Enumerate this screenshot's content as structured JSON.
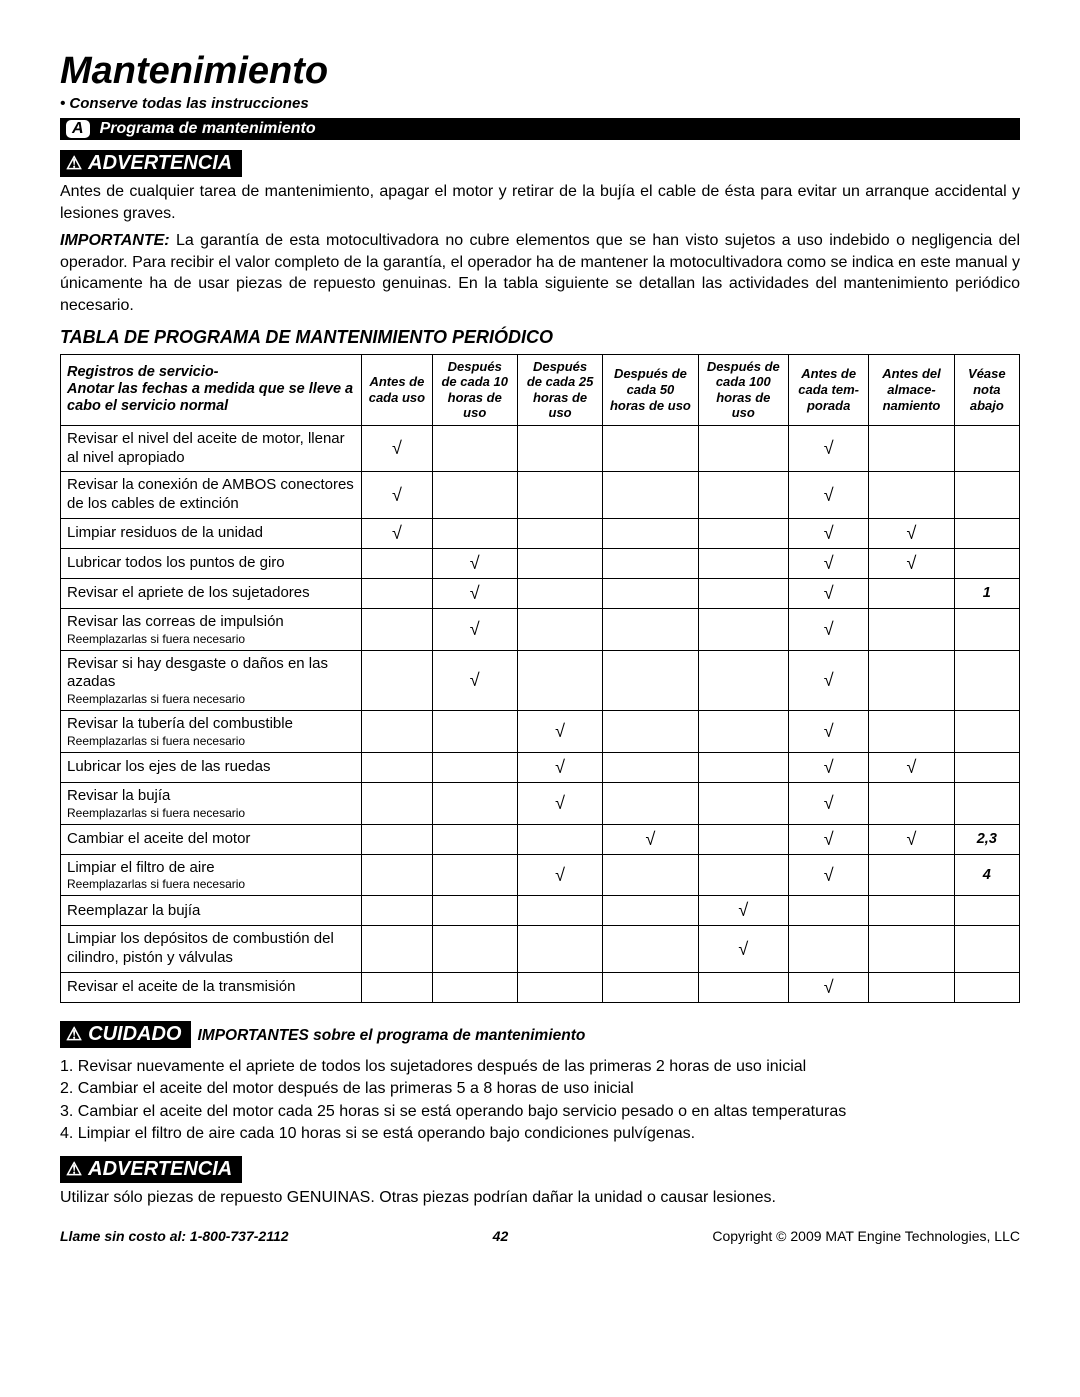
{
  "page": {
    "title": "Mantenimiento",
    "subtitle": "• Conserve todas las instrucciones",
    "section_letter": "A",
    "section_label": "Programa de mantenimiento"
  },
  "warning1": {
    "label": "ADVERTENCIA",
    "text1": "Antes de cualquier tarea de mantenimiento, apagar el motor y retirar de la bujía el cable de ésta para evitar un arranque accidental y lesiones graves.",
    "importante_label": "IMPORTANTE:",
    "text2": " La garantía de esta motocultivadora no cubre elementos que se han visto sujetos a uso indebido o negligencia del operador. Para recibir el valor completo de la garantía, el operador ha de mantener la motocultivadora como se indica en este manual y únicamente ha de usar piezas de repuesto genuinas. En la tabla siguiente se detallan las actividades del mantenimiento periódico necesario."
  },
  "table": {
    "title": "TABLA DE PROGRAMA DE MANTENIMIENTO PERIÓDICO",
    "columns": [
      "Registros de servicio-\nAnotar las fechas a medida que se lleve a cabo el servicio normal",
      "Antes de cada uso",
      "Después de cada 10 horas de uso",
      "Después de cada 25 horas de uso",
      "Después de cada 50 horas de uso",
      "Después de cada 100 horas de uso",
      "Antes de cada tem­porada",
      "Antes del almace­namiento",
      "Véase nota abajo"
    ],
    "col_widths": [
      "30%",
      "7%",
      "8.5%",
      "8.5%",
      "9.5%",
      "9%",
      "8%",
      "8.5%",
      "6.5%"
    ],
    "rows": [
      {
        "task": "Revisar el nivel del aceite de motor, llenar al nivel apropiado",
        "sub": "",
        "marks": [
          "√",
          "",
          "",
          "",
          "",
          "√",
          "",
          ""
        ]
      },
      {
        "task": "Revisar la conexión de AMBOS conectores de los cables de extinción",
        "sub": "",
        "marks": [
          "√",
          "",
          "",
          "",
          "",
          "√",
          "",
          ""
        ]
      },
      {
        "task": "Limpiar residuos de la unidad",
        "sub": "",
        "marks": [
          "√",
          "",
          "",
          "",
          "",
          "√",
          "√",
          ""
        ]
      },
      {
        "task": "Lubricar todos los puntos de giro",
        "sub": "",
        "marks": [
          "",
          "√",
          "",
          "",
          "",
          "√",
          "√",
          ""
        ]
      },
      {
        "task": "Revisar el apriete de los sujetadores",
        "sub": "",
        "marks": [
          "",
          "√",
          "",
          "",
          "",
          "√",
          "",
          "1"
        ]
      },
      {
        "task": "Revisar las correas de impulsión",
        "sub": "Reemplazarlas si fuera necesario",
        "marks": [
          "",
          "√",
          "",
          "",
          "",
          "√",
          "",
          ""
        ]
      },
      {
        "task": "Revisar si hay desgaste o daños en las azadas",
        "sub": "Reemplazarlas si fuera necesario",
        "marks": [
          "",
          "√",
          "",
          "",
          "",
          "√",
          "",
          ""
        ]
      },
      {
        "task": "Revisar la tubería del combustible",
        "sub": "Reemplazarlas si fuera necesario",
        "marks": [
          "",
          "",
          "√",
          "",
          "",
          "√",
          "",
          ""
        ]
      },
      {
        "task": "Lubricar los ejes de las ruedas",
        "sub": "",
        "marks": [
          "",
          "",
          "√",
          "",
          "",
          "√",
          "√",
          ""
        ]
      },
      {
        "task": "Revisar la bujía",
        "sub": "Reemplazarlas si fuera necesario",
        "marks": [
          "",
          "",
          "√",
          "",
          "",
          "√",
          "",
          ""
        ]
      },
      {
        "task": "Cambiar el aceite del motor",
        "sub": "",
        "marks": [
          "",
          "",
          "",
          "√",
          "",
          "√",
          "√",
          "2,3"
        ]
      },
      {
        "task": "Limpiar el filtro de aire",
        "sub": "Reemplazarlas si fuera necesario",
        "marks": [
          "",
          "",
          "√",
          "",
          "",
          "√",
          "",
          "4"
        ]
      },
      {
        "task": "Reemplazar la bujía",
        "sub": "",
        "marks": [
          "",
          "",
          "",
          "",
          "√",
          "",
          "",
          ""
        ]
      },
      {
        "task": "Limpiar los depósitos de combustión del cilindro, pistón y válvulas",
        "sub": "",
        "marks": [
          "",
          "",
          "",
          "",
          "√",
          "",
          "",
          ""
        ]
      },
      {
        "task": "Revisar el aceite de la transmisión",
        "sub": "",
        "marks": [
          "",
          "",
          "",
          "",
          "",
          "√",
          "",
          ""
        ]
      }
    ]
  },
  "cuidado": {
    "label": "CUIDADO",
    "subtitle": "IMPORTANTES sobre el programa de mantenimiento",
    "notes": [
      "1. Revisar nuevamente el apriete de todos los sujetadores después de las primeras 2 horas de uso inicial",
      "2. Cambiar el aceite del motor después de las primeras 5 a 8 horas de uso inicial",
      "3. Cambiar el aceite del motor cada 25 horas si se está operando bajo servicio pesado o en altas temperaturas",
      "4. Limpiar el filtro de aire cada 10 horas si se está operando bajo condiciones pulvígenas."
    ]
  },
  "warning2": {
    "label": "ADVERTENCIA",
    "text": "Utilizar sólo piezas de repuesto GENUINAS. Otras piezas podrían dañar la unidad o causar lesiones."
  },
  "footer": {
    "phone": "Llame sin costo al: 1-800-737-2112",
    "page": "42",
    "copyright": "Copyright © 2009 MAT Engine Technologies, LLC"
  }
}
